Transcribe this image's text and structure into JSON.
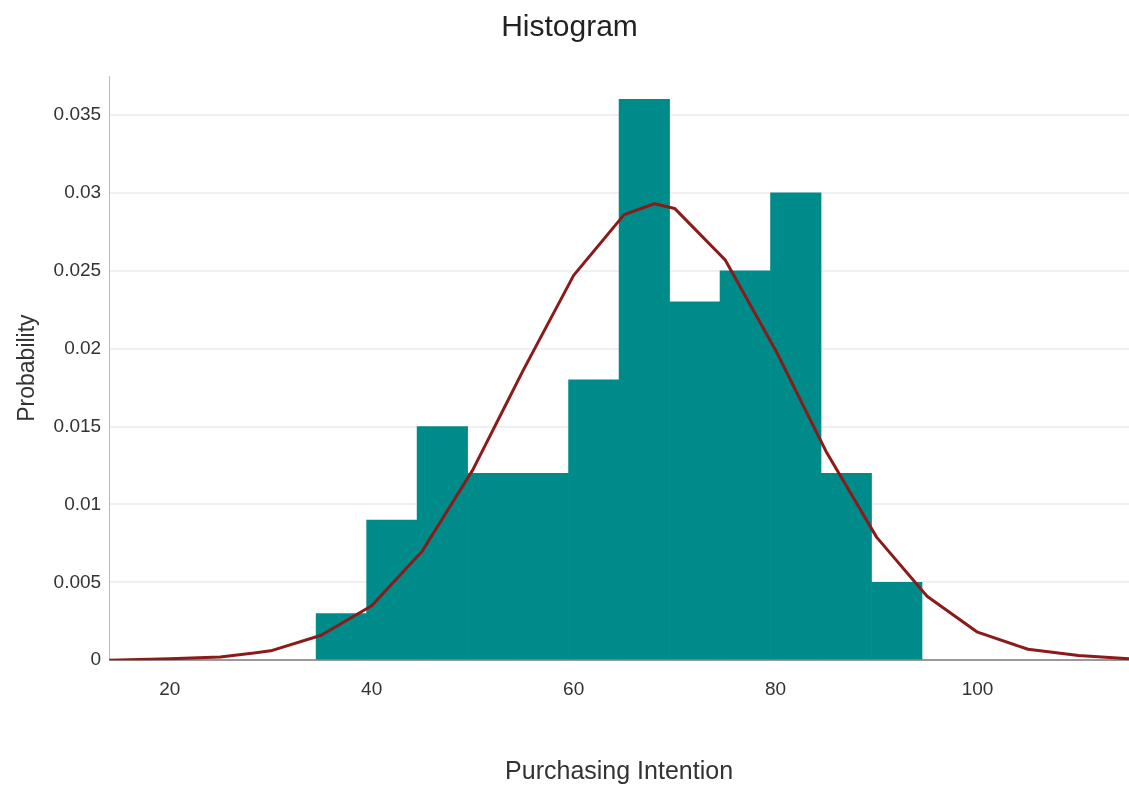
{
  "chart_data": {
    "type": "histogram",
    "title": "Histogram",
    "xlabel": "Purchasing Intention",
    "ylabel": "Probability",
    "bins": [
      34.5,
      39.5,
      44.5,
      49.5,
      54.5,
      59.5,
      64.5,
      69.5,
      74.5,
      79.5,
      84.5,
      89.5,
      94.5
    ],
    "values": [
      0.003,
      0.009,
      0.015,
      0.012,
      0.012,
      0.018,
      0.036,
      0.023,
      0.025,
      0.03,
      0.012,
      0.005
    ],
    "color": "#008b8b",
    "series": [
      {
        "type": "line",
        "color": "#8b1a1a",
        "x": [
          14,
          20,
          25,
          30,
          35,
          40,
          45,
          50,
          55,
          60,
          65,
          68,
          70,
          75,
          80,
          85,
          90,
          95,
          100,
          105,
          110,
          115
        ],
        "values": [
          0,
          0.0001,
          0.0002,
          0.0006,
          0.0016,
          0.0035,
          0.007,
          0.0122,
          0.0186,
          0.0247,
          0.0286,
          0.0293,
          0.029,
          0.0257,
          0.0199,
          0.0134,
          0.0079,
          0.0041,
          0.0018,
          0.0007,
          0.0003,
          0.0001
        ]
      }
    ],
    "xlim": [
      14,
      115
    ],
    "xticks": [
      20,
      40,
      60,
      80,
      100
    ],
    "ylim": [
      0,
      0.0375
    ],
    "yticks": [
      0,
      0.005,
      0.01,
      0.015,
      0.02,
      0.025,
      0.03,
      0.035
    ],
    "grid": "y",
    "marker": "none",
    "line_style": "solid"
  }
}
